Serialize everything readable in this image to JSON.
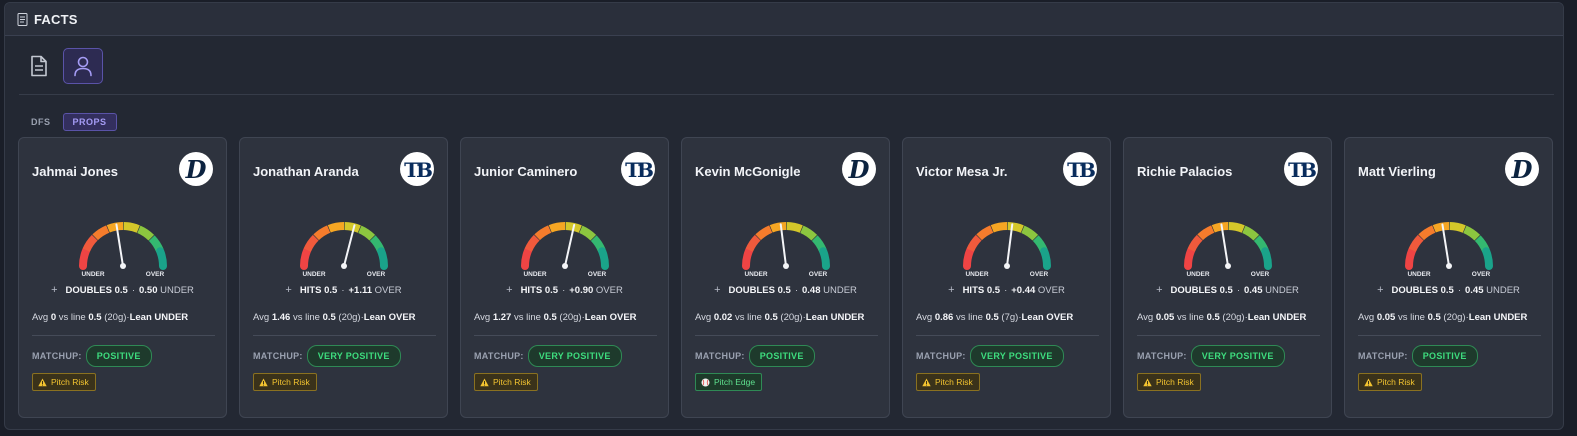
{
  "header": {
    "title": "FACTS"
  },
  "view_toggles": [
    {
      "icon": "document-icon",
      "active": false
    },
    {
      "icon": "user-icon",
      "active": true
    }
  ],
  "tabs": {
    "dfs": "DFS",
    "props": "PROPS"
  },
  "colors": {
    "accent": "#5a53a8",
    "positive": "#3ddc7e",
    "warning": "#f4c430"
  },
  "labels": {
    "under": "UNDER",
    "over": "OVER",
    "matchup": "MATCHUP:"
  },
  "cards": [
    {
      "name": "Jahmai Jones",
      "team_logo": "detroit-tigers-logo",
      "gauge_value": 0.45,
      "stat": "DOUBLES 0.5",
      "edge": "0.50",
      "direction": "UNDER",
      "avg": "0",
      "line": "0.5",
      "games": "(20g)",
      "lean": "Lean UNDER",
      "matchup": "POSITIVE",
      "badge": "Pitch Risk",
      "badge_type": "warn"
    },
    {
      "name": "Jonathan Aranda",
      "team_logo": "tampa-bay-rays-logo",
      "gauge_value": 0.58,
      "stat": "HITS 0.5",
      "edge": "+1.11",
      "direction": "OVER",
      "avg": "1.46",
      "line": "0.5",
      "games": "(20g)",
      "lean": "Lean OVER",
      "matchup": "VERY POSITIVE",
      "badge": "Pitch Risk",
      "badge_type": "warn"
    },
    {
      "name": "Junior Caminero",
      "team_logo": "tampa-bay-rays-logo",
      "gauge_value": 0.57,
      "stat": "HITS 0.5",
      "edge": "+0.90",
      "direction": "OVER",
      "avg": "1.27",
      "line": "0.5",
      "games": "(20g)",
      "lean": "Lean OVER",
      "matchup": "VERY POSITIVE",
      "badge": "Pitch Risk",
      "badge_type": "warn"
    },
    {
      "name": "Kevin McGonigle",
      "team_logo": "detroit-tigers-logo",
      "gauge_value": 0.46,
      "stat": "DOUBLES 0.5",
      "edge": "0.48",
      "direction": "UNDER",
      "avg": "0.02",
      "line": "0.5",
      "games": "(20g)",
      "lean": "Lean UNDER",
      "matchup": "POSITIVE",
      "badge": "Pitch Edge",
      "badge_type": "edge"
    },
    {
      "name": "Victor Mesa Jr.",
      "team_logo": "tampa-bay-rays-logo",
      "gauge_value": 0.54,
      "stat": "HITS 0.5",
      "edge": "+0.44",
      "direction": "OVER",
      "avg": "0.86",
      "line": "0.5",
      "games": "(7g)",
      "lean": "Lean OVER",
      "matchup": "VERY POSITIVE",
      "badge": "Pitch Risk",
      "badge_type": "warn"
    },
    {
      "name": "Richie Palacios",
      "team_logo": "tampa-bay-rays-logo",
      "gauge_value": 0.45,
      "stat": "DOUBLES 0.5",
      "edge": "0.45",
      "direction": "UNDER",
      "avg": "0.05",
      "line": "0.5",
      "games": "(20g)",
      "lean": "Lean UNDER",
      "matchup": "VERY POSITIVE",
      "badge": "Pitch Risk",
      "badge_type": "warn"
    },
    {
      "name": "Matt Vierling",
      "team_logo": "detroit-tigers-logo",
      "gauge_value": 0.45,
      "stat": "DOUBLES 0.5",
      "edge": "0.45",
      "direction": "UNDER",
      "avg": "0.05",
      "line": "0.5",
      "games": "(20g)",
      "lean": "Lean UNDER",
      "matchup": "POSITIVE",
      "badge": "Pitch Risk",
      "badge_type": "warn"
    }
  ]
}
